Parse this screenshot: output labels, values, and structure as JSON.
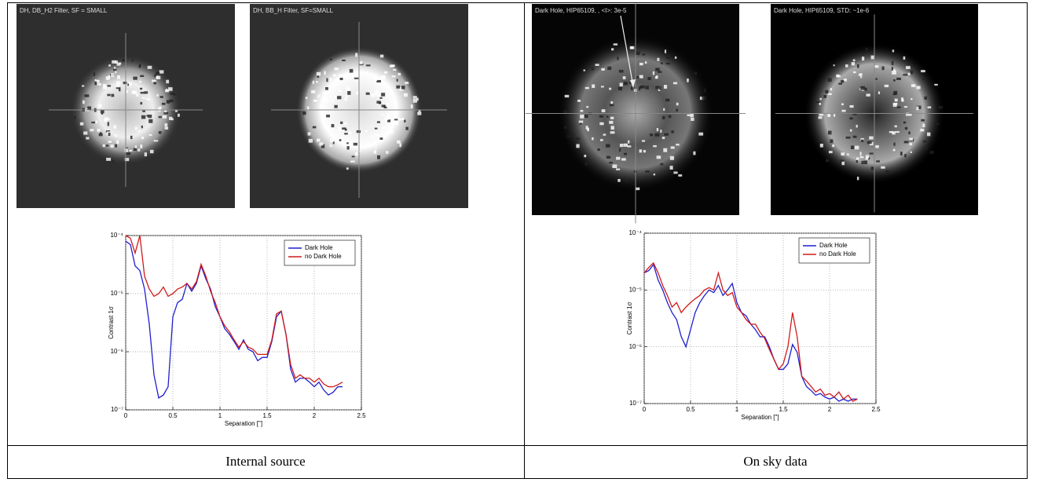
{
  "table": {
    "columns": [
      {
        "images": [
          {
            "label": "DH, DB_H2 Filter, SF = SMALL"
          },
          {
            "label": "DH, BB_H Filter, SF=SMALL"
          }
        ],
        "caption": "Internal source"
      },
      {
        "images": [
          {
            "label": "Dark Hole, HIP65109, , <I>: 3e-5"
          },
          {
            "label": "Dark Hole, HIP65109, STD: ~1e-6"
          }
        ],
        "caption": "On sky data"
      }
    ]
  },
  "chart_data": [
    {
      "type": "line",
      "xlabel": "Separation [\"]",
      "ylabel": "Contrast 1σ",
      "x": [
        0,
        0.05,
        0.1,
        0.15,
        0.2,
        0.25,
        0.3,
        0.35,
        0.4,
        0.45,
        0.5,
        0.55,
        0.6,
        0.65,
        0.7,
        0.75,
        0.8,
        0.85,
        0.9,
        0.95,
        1.0,
        1.05,
        1.1,
        1.15,
        1.2,
        1.25,
        1.3,
        1.35,
        1.4,
        1.45,
        1.5,
        1.55,
        1.6,
        1.65,
        1.7,
        1.75,
        1.8,
        1.85,
        1.9,
        1.95,
        2.0,
        2.05,
        2.1,
        2.15,
        2.2,
        2.25,
        2.3
      ],
      "series": [
        {
          "name": "Dark Hole",
          "color": "#1f1fcf",
          "values": [
            8e-05,
            7e-05,
            3e-05,
            2.5e-05,
            1.2e-05,
            3e-06,
            4e-07,
            1.6e-07,
            1.8e-07,
            2.5e-07,
            4e-06,
            7e-06,
            8e-06,
            1.5e-05,
            1.1e-05,
            1.5e-05,
            3e-05,
            1.8e-05,
            1.2e-05,
            6e-06,
            4e-06,
            2.5e-06,
            2e-06,
            1.5e-06,
            1.1e-06,
            1.6e-06,
            1.1e-06,
            1e-06,
            7e-07,
            8e-07,
            8e-07,
            1.5e-06,
            4e-06,
            5e-06,
            2e-06,
            5e-07,
            3e-07,
            3.5e-07,
            3.5e-07,
            3e-07,
            2.5e-07,
            3e-07,
            2.2e-07,
            1.8e-07,
            2e-07,
            2.5e-07,
            2.5e-07
          ]
        },
        {
          "name": "no Dark Hole",
          "color": "#d11a1a",
          "values": [
            0.0001,
            9e-05,
            5e-05,
            0.0001,
            2e-05,
            1.2e-05,
            9e-06,
            1e-05,
            1.3e-05,
            9e-06,
            1e-05,
            1.2e-05,
            1.3e-05,
            1.5e-05,
            1.2e-05,
            1.6e-05,
            3.2e-05,
            2e-05,
            1.1e-05,
            7e-06,
            4e-06,
            2.8e-06,
            2.2e-06,
            1.6e-06,
            1.2e-06,
            1.5e-06,
            1.2e-06,
            1.1e-06,
            9e-07,
            9e-07,
            9e-07,
            1.6e-06,
            4.5e-06,
            5e-06,
            2e-06,
            6e-07,
            3.5e-07,
            4e-07,
            3.5e-07,
            3.5e-07,
            3e-07,
            3.5e-07,
            2.8e-07,
            2.5e-07,
            2.5e-07,
            2.7e-07,
            3e-07
          ]
        }
      ],
      "xlim": [
        0,
        2.5
      ],
      "xticks": [
        0,
        0.5,
        1,
        1.5,
        2,
        2.5
      ],
      "ylim": [
        1e-07,
        0.0001
      ],
      "ylog": true,
      "yticks": [
        {
          "value": 1e-07,
          "label": "10⁻⁷"
        },
        {
          "value": 1e-06,
          "label": "10⁻⁶"
        },
        {
          "value": 1e-05,
          "label": "10⁻⁵"
        },
        {
          "value": 0.0001,
          "label": "10⁻⁴"
        }
      ],
      "grid": true,
      "legend": "upper right"
    },
    {
      "type": "line",
      "xlabel": "Separation [\"]",
      "ylabel": "Contrast 1σ",
      "x": [
        0,
        0.05,
        0.1,
        0.15,
        0.2,
        0.25,
        0.3,
        0.35,
        0.4,
        0.45,
        0.5,
        0.55,
        0.6,
        0.65,
        0.7,
        0.75,
        0.8,
        0.85,
        0.9,
        0.95,
        1.0,
        1.05,
        1.1,
        1.15,
        1.2,
        1.25,
        1.3,
        1.35,
        1.4,
        1.45,
        1.5,
        1.55,
        1.6,
        1.65,
        1.7,
        1.75,
        1.8,
        1.85,
        1.9,
        1.95,
        2.0,
        2.05,
        2.1,
        2.15,
        2.2,
        2.25,
        2.3
      ],
      "series": [
        {
          "name": "Dark Hole",
          "color": "#1f1fcf",
          "values": [
            2e-05,
            2.2e-05,
            2.8e-05,
            1.5e-05,
            1e-05,
            6e-06,
            4e-06,
            3e-06,
            1.5e-06,
            1e-06,
            2e-06,
            4e-06,
            6e-06,
            8e-06,
            1e-05,
            9e-06,
            1.2e-05,
            8e-06,
            1e-05,
            1.3e-05,
            6e-06,
            4e-06,
            3.5e-06,
            2.5e-06,
            2e-06,
            1.5e-06,
            1.5e-06,
            1e-06,
            6e-07,
            4e-07,
            4e-07,
            5e-07,
            1.1e-06,
            8e-07,
            3e-07,
            2e-07,
            1.7e-07,
            1.4e-07,
            1.5e-07,
            1.3e-07,
            1.2e-07,
            1.3e-07,
            1.1e-07,
            1.2e-07,
            1.1e-07,
            1.2e-07,
            1.2e-07
          ]
        },
        {
          "name": "no Dark Hole",
          "color": "#d11a1a",
          "values": [
            2e-05,
            2.5e-05,
            3e-05,
            2e-05,
            1.2e-05,
            8e-06,
            5e-06,
            6e-06,
            4e-06,
            5e-06,
            6e-06,
            7e-06,
            8e-06,
            1e-05,
            1.1e-05,
            1e-05,
            2e-05,
            1e-05,
            8e-06,
            9e-06,
            5e-06,
            4e-06,
            3e-06,
            2.5e-06,
            2.5e-06,
            1.8e-06,
            1.4e-06,
            9e-07,
            6e-07,
            4e-07,
            5e-07,
            1e-06,
            4e-06,
            1.5e-06,
            3e-07,
            2.5e-07,
            2e-07,
            1.6e-07,
            1.8e-07,
            1.4e-07,
            1.5e-07,
            1.3e-07,
            1.6e-07,
            1.2e-07,
            1.4e-07,
            1.1e-07,
            1.2e-07
          ]
        }
      ],
      "xlim": [
        0,
        2.5
      ],
      "xticks": [
        0,
        0.5,
        1,
        1.5,
        2,
        2.5
      ],
      "ylim": [
        1e-07,
        0.0001
      ],
      "ylog": true,
      "yticks": [
        {
          "value": 1e-07,
          "label": "10⁻⁷"
        },
        {
          "value": 1e-06,
          "label": "10⁻⁶"
        },
        {
          "value": 1e-05,
          "label": "10⁻⁵"
        },
        {
          "value": 0.0001,
          "label": "10⁻⁴"
        }
      ],
      "grid": true,
      "legend": "upper right"
    }
  ]
}
